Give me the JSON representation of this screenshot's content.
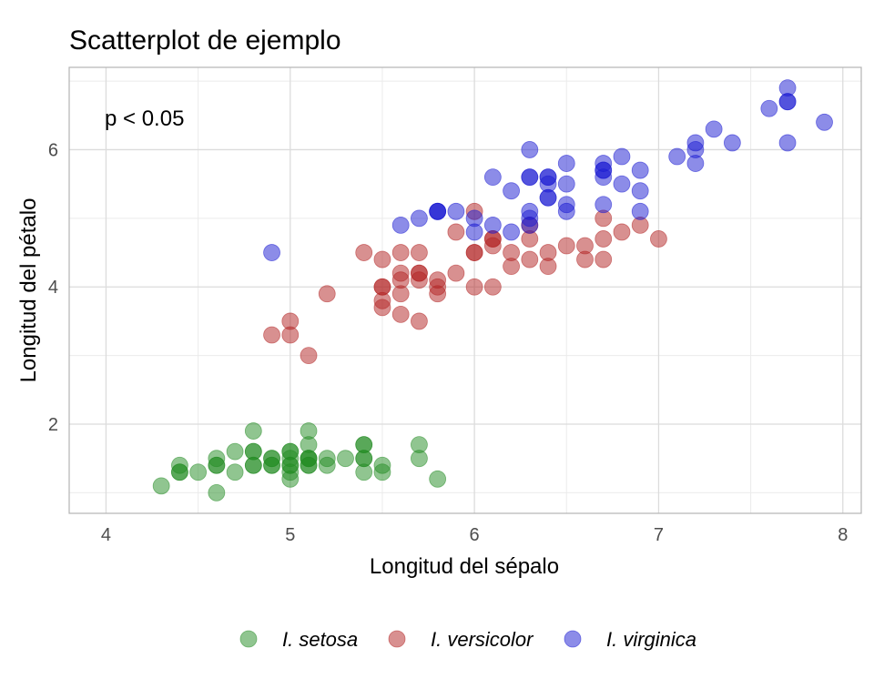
{
  "chart_data": {
    "type": "scatter",
    "title": "Scatterplot de ejemplo",
    "xlabel": "Longitud del sépalo",
    "ylabel": "Longitud del pétalo",
    "annotation": "p < 0.05",
    "xlim": [
      3.8,
      8.1
    ],
    "ylim": [
      0.7,
      7.2
    ],
    "x_ticks": [
      4,
      5,
      6,
      7,
      8
    ],
    "y_ticks": [
      2,
      4,
      6
    ],
    "grid": true,
    "legend_position": "bottom",
    "series": [
      {
        "name": "I. setosa",
        "color": "#228b22",
        "points": [
          [
            4.3,
            1.1
          ],
          [
            4.4,
            1.4
          ],
          [
            4.4,
            1.3
          ],
          [
            4.4,
            1.3
          ],
          [
            4.5,
            1.3
          ],
          [
            4.6,
            1.4
          ],
          [
            4.6,
            1.0
          ],
          [
            4.6,
            1.5
          ],
          [
            4.6,
            1.4
          ],
          [
            4.7,
            1.6
          ],
          [
            4.7,
            1.3
          ],
          [
            4.8,
            1.6
          ],
          [
            4.8,
            1.4
          ],
          [
            4.8,
            1.6
          ],
          [
            4.8,
            1.9
          ],
          [
            4.8,
            1.4
          ],
          [
            4.9,
            1.4
          ],
          [
            4.9,
            1.5
          ],
          [
            4.9,
            1.5
          ],
          [
            4.9,
            1.4
          ],
          [
            5.0,
            1.4
          ],
          [
            5.0,
            1.5
          ],
          [
            5.0,
            1.6
          ],
          [
            5.0,
            1.2
          ],
          [
            5.0,
            1.3
          ],
          [
            5.0,
            1.6
          ],
          [
            5.0,
            1.4
          ],
          [
            5.1,
            1.4
          ],
          [
            5.1,
            1.5
          ],
          [
            5.1,
            1.7
          ],
          [
            5.1,
            1.5
          ],
          [
            5.1,
            1.9
          ],
          [
            5.1,
            1.5
          ],
          [
            5.1,
            1.4
          ],
          [
            5.2,
            1.5
          ],
          [
            5.2,
            1.4
          ],
          [
            5.3,
            1.5
          ],
          [
            5.4,
            1.7
          ],
          [
            5.4,
            1.5
          ],
          [
            5.4,
            1.7
          ],
          [
            5.4,
            1.5
          ],
          [
            5.4,
            1.3
          ],
          [
            5.5,
            1.4
          ],
          [
            5.5,
            1.3
          ],
          [
            5.7,
            1.5
          ],
          [
            5.7,
            1.7
          ],
          [
            5.8,
            1.2
          ]
        ]
      },
      {
        "name": "I. versicolor",
        "color": "#b22222",
        "points": [
          [
            4.9,
            3.3
          ],
          [
            5.0,
            3.5
          ],
          [
            5.0,
            3.3
          ],
          [
            5.1,
            3.0
          ],
          [
            5.2,
            3.9
          ],
          [
            5.4,
            4.5
          ],
          [
            5.5,
            4.0
          ],
          [
            5.5,
            3.8
          ],
          [
            5.5,
            3.7
          ],
          [
            5.5,
            4.0
          ],
          [
            5.5,
            4.4
          ],
          [
            5.6,
            3.6
          ],
          [
            5.6,
            4.5
          ],
          [
            5.6,
            3.9
          ],
          [
            5.6,
            4.2
          ],
          [
            5.6,
            4.1
          ],
          [
            5.7,
            4.5
          ],
          [
            5.7,
            3.5
          ],
          [
            5.7,
            4.2
          ],
          [
            5.7,
            4.2
          ],
          [
            5.7,
            4.1
          ],
          [
            5.8,
            4.1
          ],
          [
            5.8,
            3.9
          ],
          [
            5.8,
            4.0
          ],
          [
            5.9,
            4.8
          ],
          [
            5.9,
            4.2
          ],
          [
            6.0,
            4.5
          ],
          [
            6.0,
            4.0
          ],
          [
            6.0,
            5.1
          ],
          [
            6.0,
            4.5
          ],
          [
            6.1,
            4.7
          ],
          [
            6.1,
            4.0
          ],
          [
            6.1,
            4.7
          ],
          [
            6.1,
            4.6
          ],
          [
            6.2,
            4.5
          ],
          [
            6.2,
            4.3
          ],
          [
            6.3,
            4.9
          ],
          [
            6.3,
            4.7
          ],
          [
            6.3,
            4.4
          ],
          [
            6.4,
            4.5
          ],
          [
            6.4,
            4.3
          ],
          [
            6.5,
            4.6
          ],
          [
            6.6,
            4.6
          ],
          [
            6.6,
            4.4
          ],
          [
            6.7,
            4.4
          ],
          [
            6.7,
            4.7
          ],
          [
            6.7,
            5.0
          ],
          [
            6.8,
            4.8
          ],
          [
            6.9,
            4.9
          ],
          [
            7.0,
            4.7
          ]
        ]
      },
      {
        "name": "I. virginica",
        "color": "#1a1ad2",
        "points": [
          [
            4.9,
            4.5
          ],
          [
            5.6,
            4.9
          ],
          [
            5.7,
            5.0
          ],
          [
            5.8,
            5.1
          ],
          [
            5.8,
            5.1
          ],
          [
            5.8,
            5.1
          ],
          [
            5.9,
            5.1
          ],
          [
            6.0,
            5.0
          ],
          [
            6.0,
            4.8
          ],
          [
            6.1,
            5.6
          ],
          [
            6.1,
            4.9
          ],
          [
            6.2,
            5.4
          ],
          [
            6.2,
            4.8
          ],
          [
            6.3,
            6.0
          ],
          [
            6.3,
            5.6
          ],
          [
            6.3,
            5.1
          ],
          [
            6.3,
            4.9
          ],
          [
            6.3,
            5.6
          ],
          [
            6.3,
            5.0
          ],
          [
            6.4,
            5.5
          ],
          [
            6.4,
            5.3
          ],
          [
            6.4,
            5.6
          ],
          [
            6.4,
            5.6
          ],
          [
            6.4,
            5.3
          ],
          [
            6.5,
            5.8
          ],
          [
            6.5,
            5.5
          ],
          [
            6.5,
            5.1
          ],
          [
            6.5,
            5.2
          ],
          [
            6.7,
            5.8
          ],
          [
            6.7,
            5.7
          ],
          [
            6.7,
            5.6
          ],
          [
            6.7,
            5.7
          ],
          [
            6.7,
            5.2
          ],
          [
            6.8,
            5.9
          ],
          [
            6.8,
            5.5
          ],
          [
            6.9,
            5.4
          ],
          [
            6.9,
            5.7
          ],
          [
            6.9,
            5.1
          ],
          [
            7.1,
            5.9
          ],
          [
            7.2,
            6.1
          ],
          [
            7.2,
            5.8
          ],
          [
            7.2,
            6.0
          ],
          [
            7.3,
            6.3
          ],
          [
            7.4,
            6.1
          ],
          [
            7.6,
            6.6
          ],
          [
            7.7,
            6.7
          ],
          [
            7.7,
            6.9
          ],
          [
            7.7,
            6.7
          ],
          [
            7.7,
            6.1
          ],
          [
            7.9,
            6.4
          ]
        ]
      }
    ]
  }
}
